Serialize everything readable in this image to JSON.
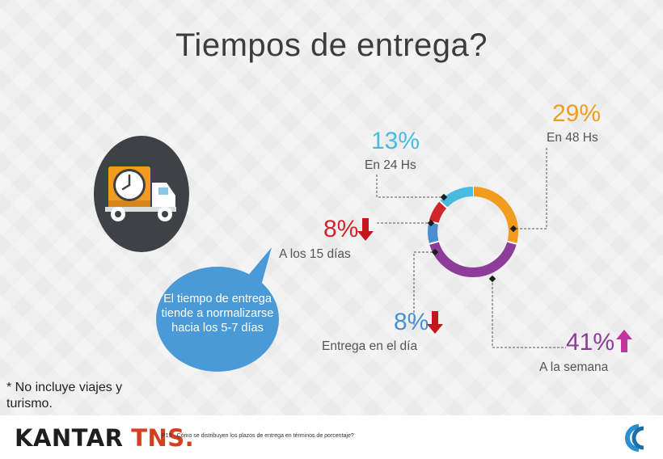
{
  "title": "Tiempos de entrega?",
  "bubble_text": "El tiempo de entrega tiende a normalizarse hacia los 5-7 días",
  "note": "* No incluye viajes y turismo.",
  "footer": {
    "logo_main": "KANTAR",
    "logo_accent": "TNS.",
    "question": "P19 - Cómo se distribuyen los plazos de entrega en términos de porcentaje?"
  },
  "colors": {
    "title": "#3c3c3c",
    "bubble": "#4a9ad8",
    "arrow_down": "#c4161c",
    "arrow_up": "#c0359e"
  },
  "icons": [
    "delivery-truck-clock-icon",
    "speech-bubble-icon",
    "trend-arrow-icon",
    "kantar-tns-logo",
    "cc-logo-icon"
  ],
  "chart_data": {
    "type": "pie",
    "variant": "donut",
    "segments": [
      {
        "label": "En 48 Hs",
        "value": 29,
        "display": "29%",
        "color": "#f29c1f",
        "trend": ""
      },
      {
        "label": "A la semana",
        "value": 41,
        "display": "41%",
        "color": "#8d3c99",
        "trend": "up"
      },
      {
        "label": "Entrega en el día",
        "value": 8,
        "display": "8%",
        "color": "#4a8fd3",
        "trend": "down"
      },
      {
        "label": "A los 15 días",
        "value": 8,
        "display": "8%",
        "color": "#d0252a",
        "trend": "down"
      },
      {
        "label": "En 24 Hs",
        "value": 13,
        "display": "13%",
        "color": "#47bce0",
        "trend": ""
      }
    ]
  }
}
